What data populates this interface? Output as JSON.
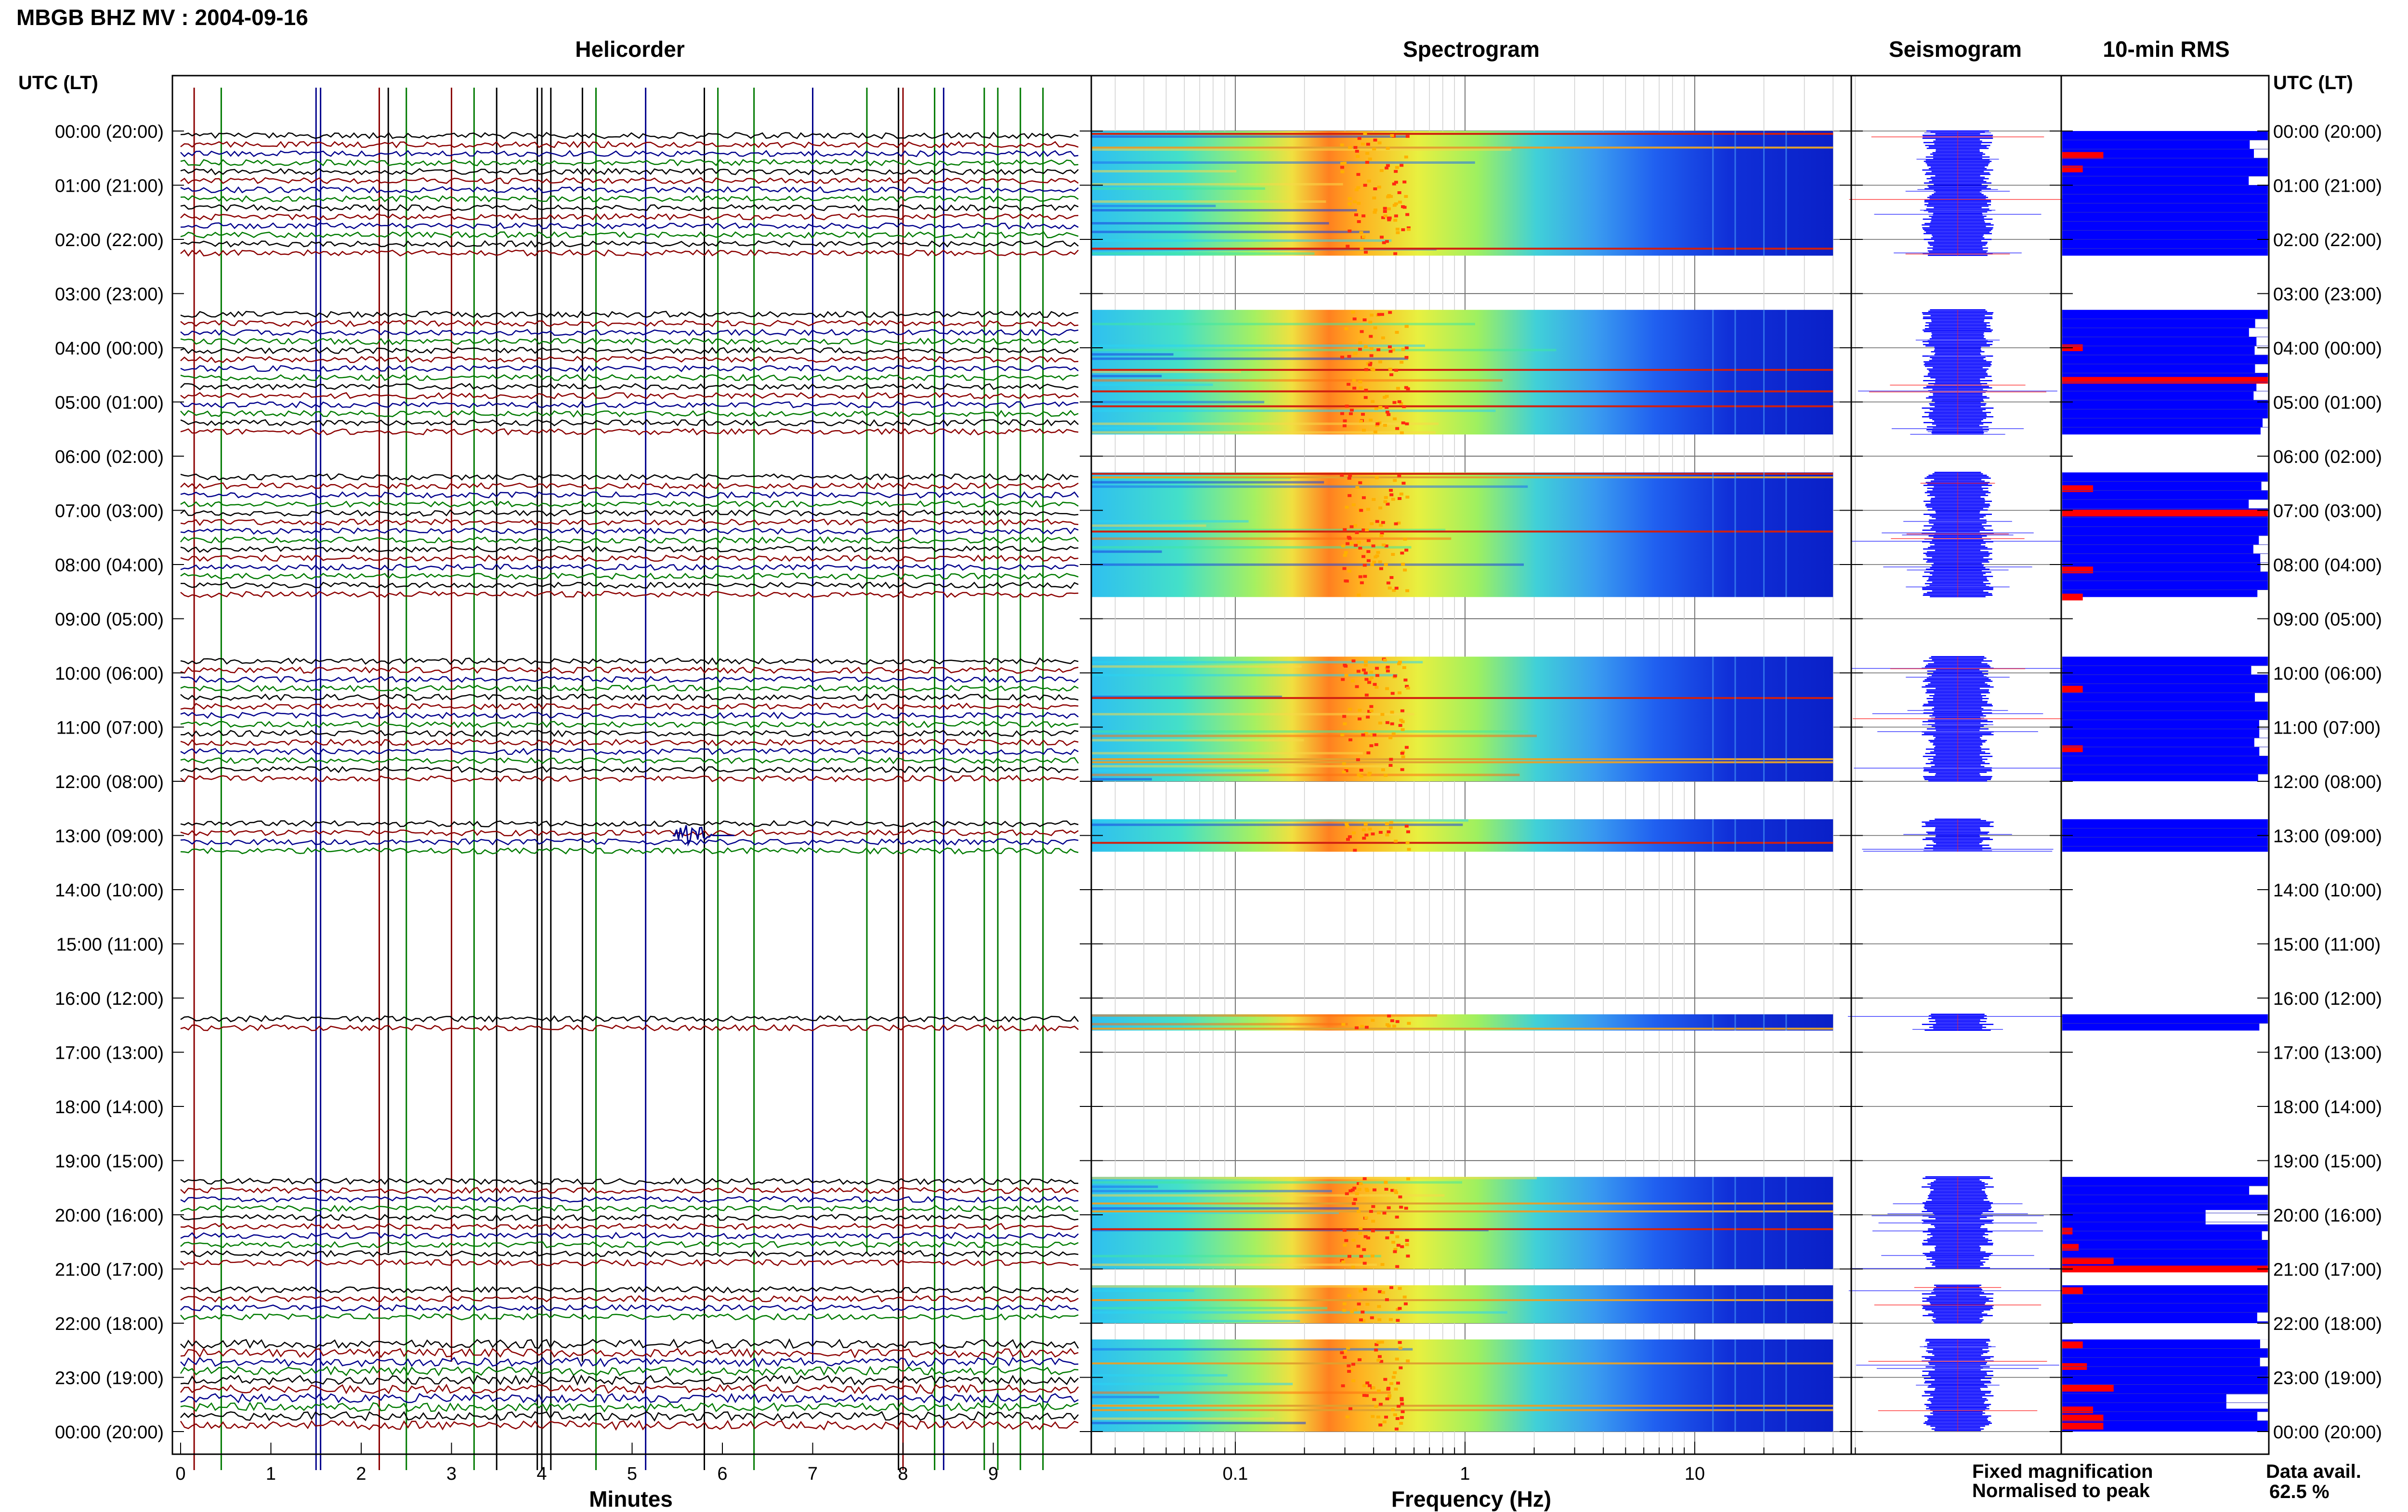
{
  "header": {
    "station_title": "MBGB BHZ MV : 2004-09-16"
  },
  "panels": {
    "helicorder_title": "Helicorder",
    "spectrogram_title": "Spectrogram",
    "seismogram_title": "Seismogram",
    "rms_title": "10-min RMS"
  },
  "axes": {
    "y_label_left": "UTC (LT)",
    "y_label_right": "UTC (LT)",
    "helicorder_xlabel": "Minutes",
    "spectrogram_xlabel": "Frequency (Hz)"
  },
  "legend": {
    "fixed": "Fixed magnification",
    "normalised": "Normalised to peak",
    "fixed_color": "#1a1aff",
    "normalised_color": "#ff1a1a"
  },
  "availability": {
    "label": "Data avail.",
    "value": "62.5 %"
  },
  "colors": {
    "trace_black": "#000000",
    "trace_red": "#8b0000",
    "trace_blue": "#00008b",
    "trace_green": "#007a00",
    "rms_blue": "#0000ff",
    "rms_red": "#ff0000"
  },
  "chart_data": {
    "type": "heatmap",
    "title": "MBGB BHZ MV : 2004-09-16",
    "y_ticks": [
      "00:00 (20:00)",
      "01:00 (21:00)",
      "02:00 (22:00)",
      "03:00 (23:00)",
      "04:00 (00:00)",
      "05:00 (01:00)",
      "06:00 (02:00)",
      "07:00 (03:00)",
      "08:00 (04:00)",
      "09:00 (05:00)",
      "10:00 (06:00)",
      "11:00 (07:00)",
      "12:00 (08:00)",
      "13:00 (09:00)",
      "14:00 (10:00)",
      "15:00 (11:00)",
      "16:00 (12:00)",
      "17:00 (13:00)",
      "18:00 (14:00)",
      "19:00 (15:00)",
      "20:00 (16:00)",
      "21:00 (17:00)",
      "22:00 (18:00)",
      "23:00 (19:00)",
      "00:00 (20:00)"
    ],
    "helicorder_x_ticks": [
      "0",
      "1",
      "2",
      "3",
      "4",
      "5",
      "6",
      "7",
      "8",
      "9"
    ],
    "helicorder_xlim": [
      0,
      10
    ],
    "spectrogram_x_ticks": [
      "0.1",
      "1",
      "10"
    ],
    "spectrogram_xlim": [
      0.025,
      50
    ],
    "spectrogram_xscale": "log",
    "spectrogram_data_fmax": 40,
    "spectrogram_peak_frequency_hz": 0.4,
    "data_blocks_utc_hours": [
      [
        0,
        2.3
      ],
      [
        3.3,
        5.6
      ],
      [
        6.3,
        8.6
      ],
      [
        9.7,
        12.0
      ],
      [
        12.7,
        13.3
      ],
      [
        16.3,
        16.6
      ],
      [
        19.3,
        21.0
      ],
      [
        21.3,
        22.0
      ],
      [
        22.3,
        24.0
      ]
    ],
    "rms_normalised_bars": [
      {
        "hour": 0.45,
        "level": 0.2
      },
      {
        "hour": 0.7,
        "level": 0.1
      },
      {
        "hour": 4.0,
        "level": 0.1
      },
      {
        "hour": 4.6,
        "level": 1.0
      },
      {
        "hour": 6.6,
        "level": 0.15
      },
      {
        "hour": 7.05,
        "level": 1.0
      },
      {
        "hour": 8.1,
        "level": 0.15
      },
      {
        "hour": 8.6,
        "level": 0.1
      },
      {
        "hour": 10.3,
        "level": 0.1
      },
      {
        "hour": 11.4,
        "level": 0.1
      },
      {
        "hour": 20.3,
        "level": 0.05
      },
      {
        "hour": 20.6,
        "level": 0.08
      },
      {
        "hour": 20.85,
        "level": 0.25
      },
      {
        "hour": 21.0,
        "level": 1.0
      },
      {
        "hour": 21.4,
        "level": 0.1
      },
      {
        "hour": 22.4,
        "level": 0.1
      },
      {
        "hour": 22.8,
        "level": 0.12
      },
      {
        "hour": 23.2,
        "level": 0.25
      },
      {
        "hour": 23.6,
        "level": 0.15
      },
      {
        "hour": 23.75,
        "level": 0.2
      },
      {
        "hour": 23.9,
        "level": 0.2
      }
    ],
    "rms_fixed_gap_levels": [
      {
        "hour": 20.0,
        "level": 0.7
      },
      {
        "hour": 23.4,
        "level": 0.8
      }
    ],
    "helicorder_event": {
      "hour": 13.0,
      "minute": 5.7
    },
    "grid": true
  }
}
